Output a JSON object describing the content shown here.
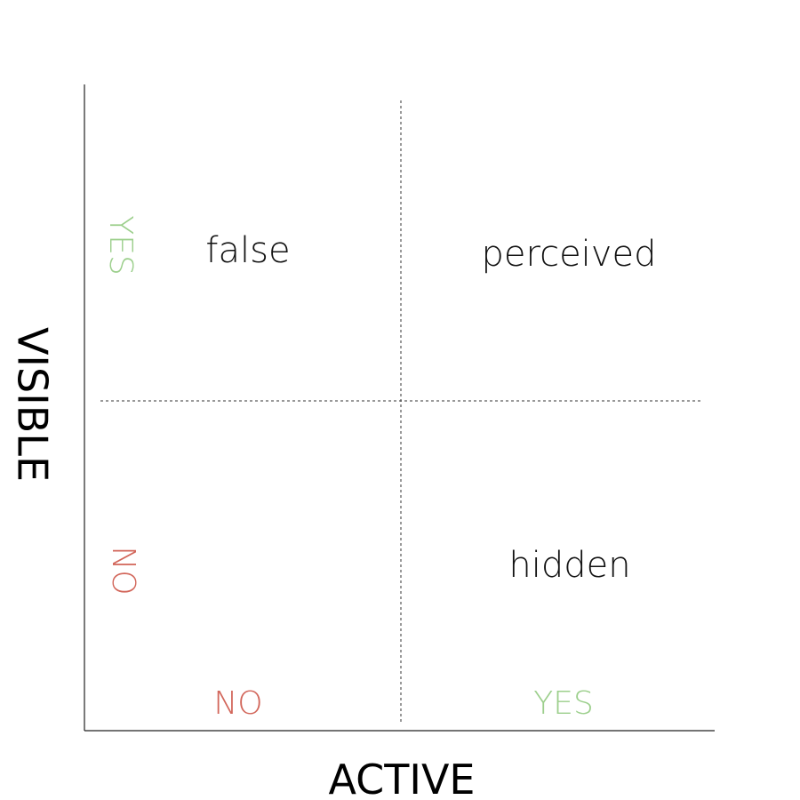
{
  "axes": {
    "x": {
      "title": "ACTIVE",
      "ticks": [
        {
          "label": "NO",
          "color": "#d2665a"
        },
        {
          "label": "YES",
          "color": "#9ccf8c"
        }
      ]
    },
    "y": {
      "title": "VISIBLE",
      "ticks": [
        {
          "label": "YES",
          "color": "#9ccf8c"
        },
        {
          "label": "NO",
          "color": "#d2665a"
        }
      ]
    }
  },
  "quadrants": {
    "top_left": "false",
    "top_right": "perceived",
    "bottom_right": "hidden",
    "bottom_left": ""
  }
}
